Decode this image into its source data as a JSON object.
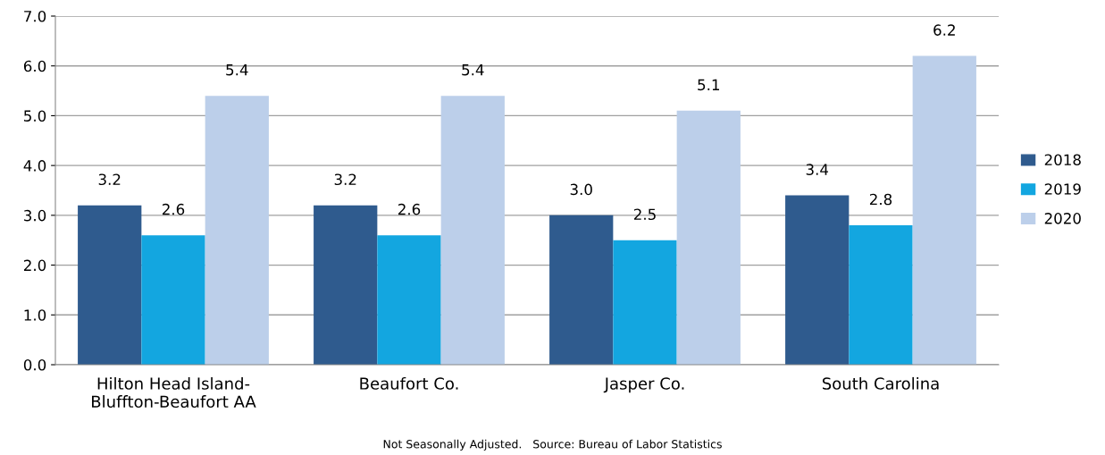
{
  "chart_data": {
    "type": "bar",
    "categories": [
      "Hilton Head Island-\nBluffton-Beaufort AA",
      "Beaufort Co.",
      "Jasper Co.",
      "South Carolina"
    ],
    "series": [
      {
        "name": "2018",
        "color": "#2f5b8e",
        "values": [
          3.2,
          3.2,
          3.0,
          3.4
        ],
        "value_labels": [
          "3.2",
          "3.2",
          "3.0",
          "3.4"
        ]
      },
      {
        "name": "2019",
        "color": "#13a6e0",
        "values": [
          2.6,
          2.6,
          2.5,
          2.8
        ],
        "value_labels": [
          "2.6",
          "2.6",
          "2.5",
          "2.8"
        ]
      },
      {
        "name": "2020",
        "color": "#bccfea",
        "values": [
          5.4,
          5.4,
          5.1,
          6.2
        ],
        "value_labels": [
          "5.4",
          "5.4",
          "5.1",
          "6.2"
        ]
      }
    ],
    "ylim": [
      0,
      7
    ],
    "yticks": [
      {
        "value": 0,
        "label": "0.0"
      },
      {
        "value": 1,
        "label": "1.0"
      },
      {
        "value": 2,
        "label": "2.0"
      },
      {
        "value": 3,
        "label": "3.0"
      },
      {
        "value": 4,
        "label": "4.0"
      },
      {
        "value": 5,
        "label": "5.0"
      },
      {
        "value": 6,
        "label": "6.0"
      },
      {
        "value": 7,
        "label": "7.0"
      }
    ],
    "grid": "y",
    "legend": "right",
    "annotations": [
      "Not Seasonally Adjusted.   Source: Bureau of Labor Statistics"
    ]
  }
}
